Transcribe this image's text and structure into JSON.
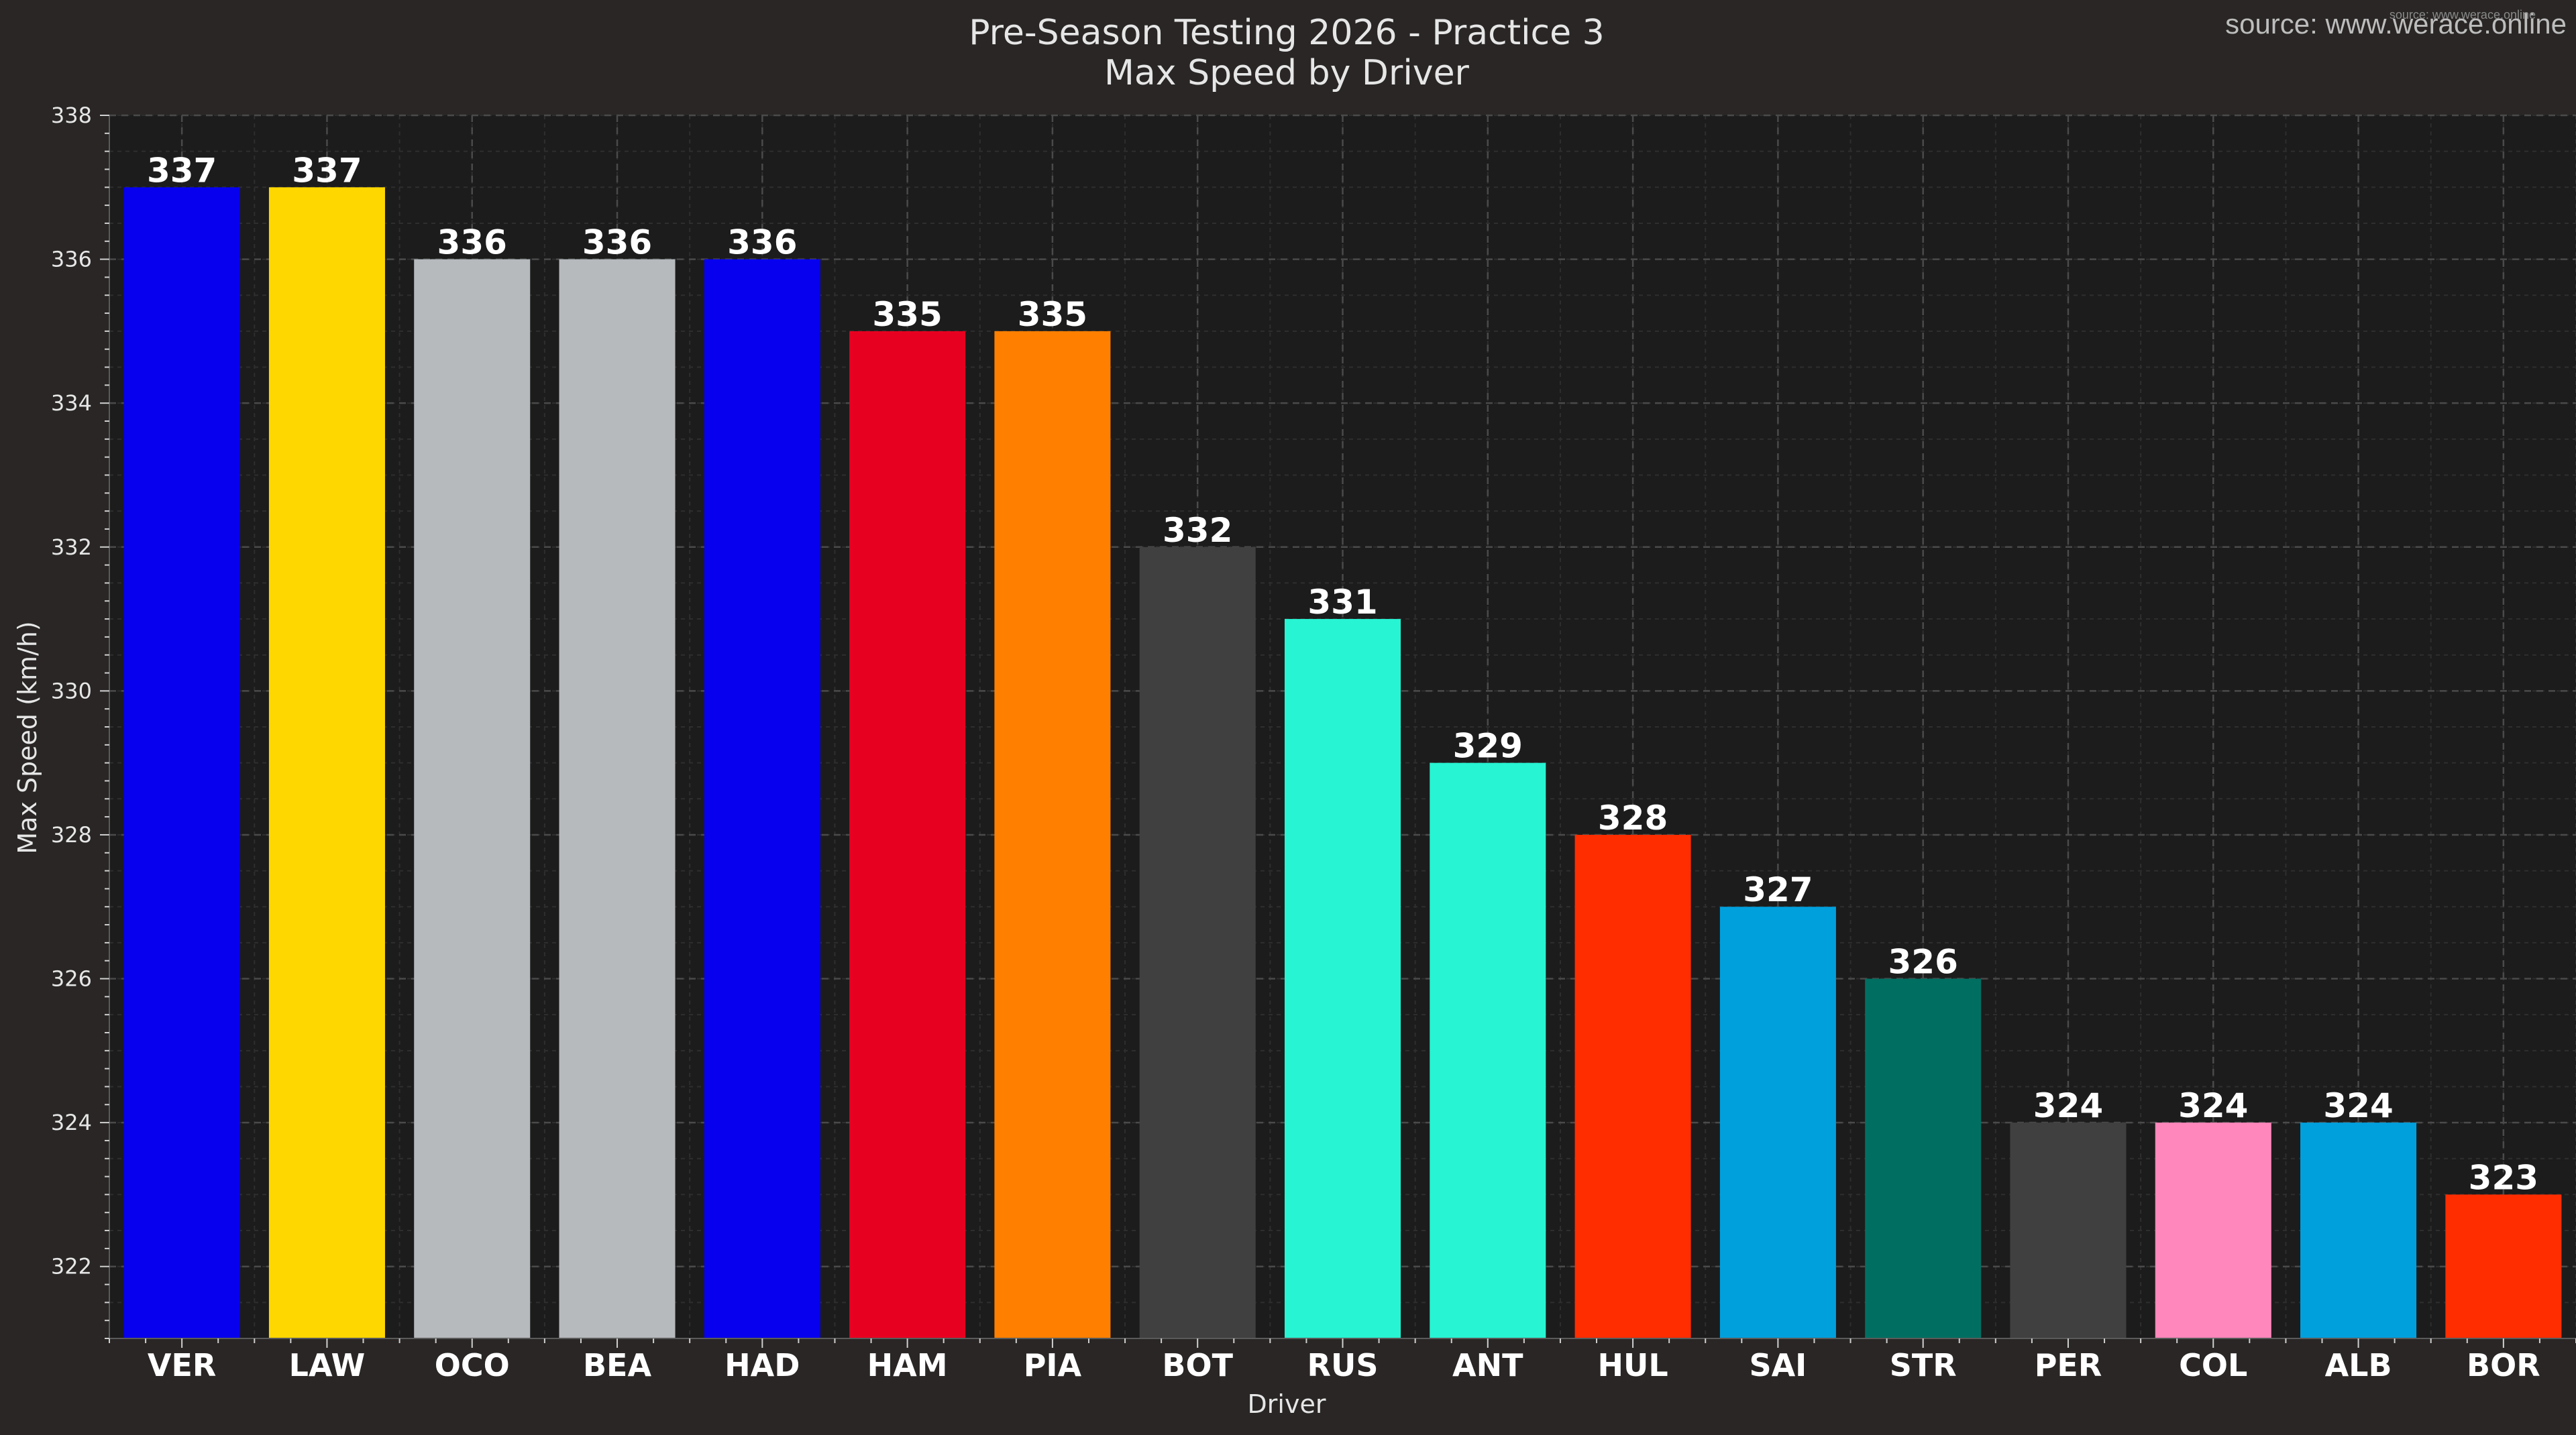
{
  "chart_data": {
    "type": "bar",
    "title": "Pre-Season Testing 2026 - Practice 3",
    "subtitle": "Max Speed by Driver",
    "source": "source: www.werace.online",
    "source_small": "source: www.werace.online",
    "xlabel": "Driver",
    "ylabel": "Max Speed (km/h)",
    "ylim": [
      321,
      338
    ],
    "yticks": [
      322,
      324,
      326,
      328,
      330,
      332,
      334,
      336,
      338
    ],
    "grid": true,
    "categories": [
      "VER",
      "LAW",
      "OCO",
      "BEA",
      "HAD",
      "HAM",
      "PIA",
      "BOT",
      "RUS",
      "ANT",
      "HUL",
      "SAI",
      "STR",
      "PER",
      "COL",
      "ALB",
      "BOR"
    ],
    "values": [
      337,
      337,
      336,
      336,
      336,
      335,
      335,
      332,
      331,
      329,
      328,
      327,
      326,
      324,
      324,
      324,
      323
    ],
    "colors": [
      "#0600EF",
      "#FFD700",
      "#B6BABD",
      "#B6BABD",
      "#0600EF",
      "#E80020",
      "#FF8000",
      "#404040",
      "#27F4D2",
      "#27F4D2",
      "#FF2D00",
      "#00A0DD",
      "#006F62",
      "#404040",
      "#FF87BC",
      "#00A0DD",
      "#FF2D00"
    ]
  },
  "colors": {
    "background": "#292625",
    "plot_background": "#1c1c1c",
    "grid_major": "#4a4a4a",
    "grid_minor": "#2e2e2e",
    "text": "#e6e6e6"
  }
}
